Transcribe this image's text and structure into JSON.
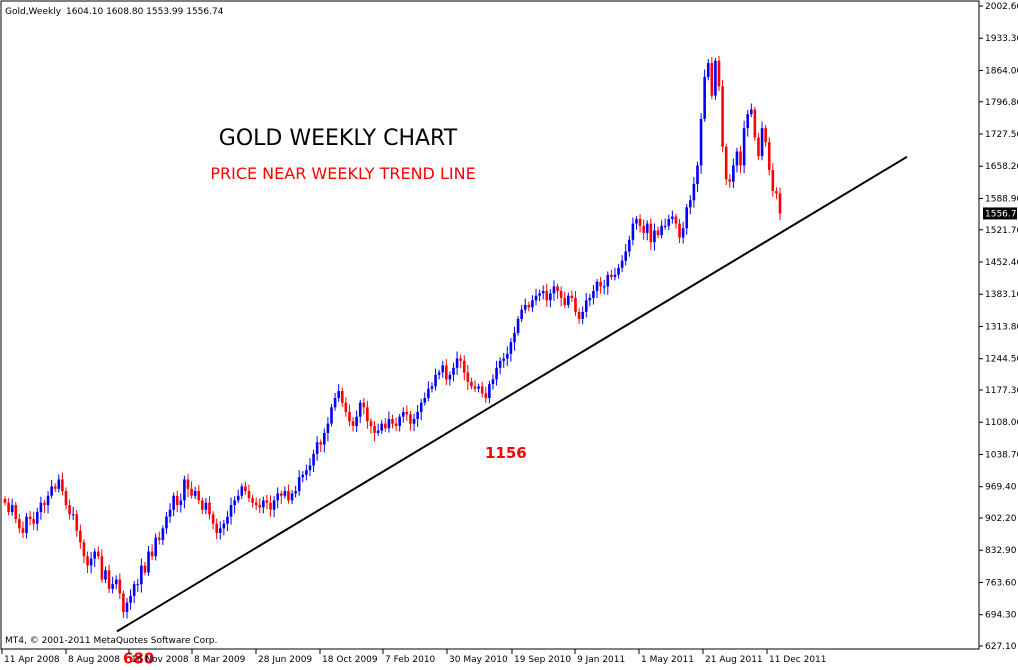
{
  "header": {
    "symbol": "Gold,Weekly",
    "ohlc": "1604.10 1608.80 1553.99 1556.74"
  },
  "footer": {
    "copyright": "MT4, © 2001-2011 MetaQuotes Software Corp."
  },
  "colors": {
    "bull": "#0000ff",
    "bear": "#ff0000",
    "wick": "#000000",
    "trendline": "#000000",
    "axis": "#000000",
    "annotation": "#ff0000",
    "background": "#ffffff"
  },
  "chart_data": {
    "type": "candlestick",
    "title": "GOLD WEEKLY CHART",
    "subtitle": "PRICE NEAR WEEKLY TREND LINE",
    "y_ticks": [
      "2002.60",
      "1933.30",
      "1864.00",
      "1796.80",
      "1727.50",
      "1658.20",
      "1588.90",
      "1521.70",
      "1452.40",
      "1383.10",
      "1313.80",
      "1244.50",
      "1177.30",
      "1108.00",
      "1038.70",
      "969.40",
      "902.20",
      "832.90",
      "763.60",
      "694.30",
      "627.10"
    ],
    "x_ticks": [
      "11 Apr 2008",
      "8 Aug 2008",
      "16 Nov 2008",
      "8 Mar 2009",
      "28 Jun 2009",
      "18 Oct 2009",
      "7 Feb 2010",
      "30 May 2010",
      "19 Sep 2010",
      "9 Jan 2011",
      "1 May 2011",
      "21 Aug 2011",
      "11 Dec 2011"
    ],
    "ylim": [
      627.1,
      2002.6
    ],
    "current_price": "1556.74",
    "annotations": [
      {
        "label": "680",
        "x": "Oct 2008",
        "y": 680
      },
      {
        "label": "1156",
        "x": "Jul 2010",
        "y": 1156
      }
    ],
    "trendline": {
      "start": {
        "x": "Oct 2008",
        "y": 680
      },
      "end": {
        "x": "Mar 2012",
        "y": 1700
      }
    },
    "series": [
      {
        "weeks_per_step": 1,
        "closes": [
          935,
          915,
          930,
          900,
          880,
          870,
          905,
          900,
          890,
          915,
          935,
          930,
          950,
          970,
          965,
          985,
          960,
          930,
          910,
          910,
          875,
          850,
          820,
          800,
          815,
          830,
          820,
          770,
          790,
          750,
          760,
          770,
          740,
          700,
          720,
          735,
          760,
          760,
          800,
          785,
          830,
          820,
          860,
          855,
          880,
          905,
          920,
          950,
          930,
          940,
          985,
          965,
          950,
          960,
          940,
          920,
          935,
          910,
          890,
          870,
          880,
          890,
          905,
          930,
          940,
          950,
          970,
          960,
          945,
          935,
          930,
          925,
          940,
          935,
          920,
          940,
          955,
          950,
          960,
          940,
          955,
          960,
          990,
          995,
          1005,
          1015,
          1040,
          1065,
          1060,
          1085,
          1105,
          1140,
          1160,
          1175,
          1150,
          1130,
          1110,
          1100,
          1120,
          1150,
          1140,
          1110,
          1100,
          1085,
          1090,
          1105,
          1095,
          1115,
          1105,
          1100,
          1120,
          1130,
          1125,
          1105,
          1115,
          1130,
          1150,
          1160,
          1180,
          1185,
          1210,
          1215,
          1230,
          1200,
          1210,
          1225,
          1245,
          1240,
          1215,
          1195,
          1185,
          1180,
          1185,
          1170,
          1160,
          1190,
          1200,
          1225,
          1240,
          1245,
          1255,
          1280,
          1300,
          1330,
          1350,
          1360,
          1355,
          1370,
          1380,
          1385,
          1390,
          1370,
          1385,
          1400,
          1390,
          1375,
          1360,
          1380,
          1375,
          1345,
          1330,
          1345,
          1370,
          1375,
          1390,
          1410,
          1400,
          1400,
          1425,
          1420,
          1425,
          1440,
          1455,
          1475,
          1500,
          1535,
          1545,
          1530,
          1515,
          1535,
          1495,
          1520,
          1510,
          1530,
          1530,
          1545,
          1550,
          1535,
          1505,
          1525,
          1570,
          1585,
          1620,
          1660,
          1760,
          1850,
          1880,
          1810,
          1885,
          1830,
          1700,
          1630,
          1625,
          1660,
          1690,
          1660,
          1740,
          1770,
          1780,
          1720,
          1680,
          1740,
          1710,
          1650,
          1605,
          1600,
          1556.74
        ]
      }
    ]
  }
}
